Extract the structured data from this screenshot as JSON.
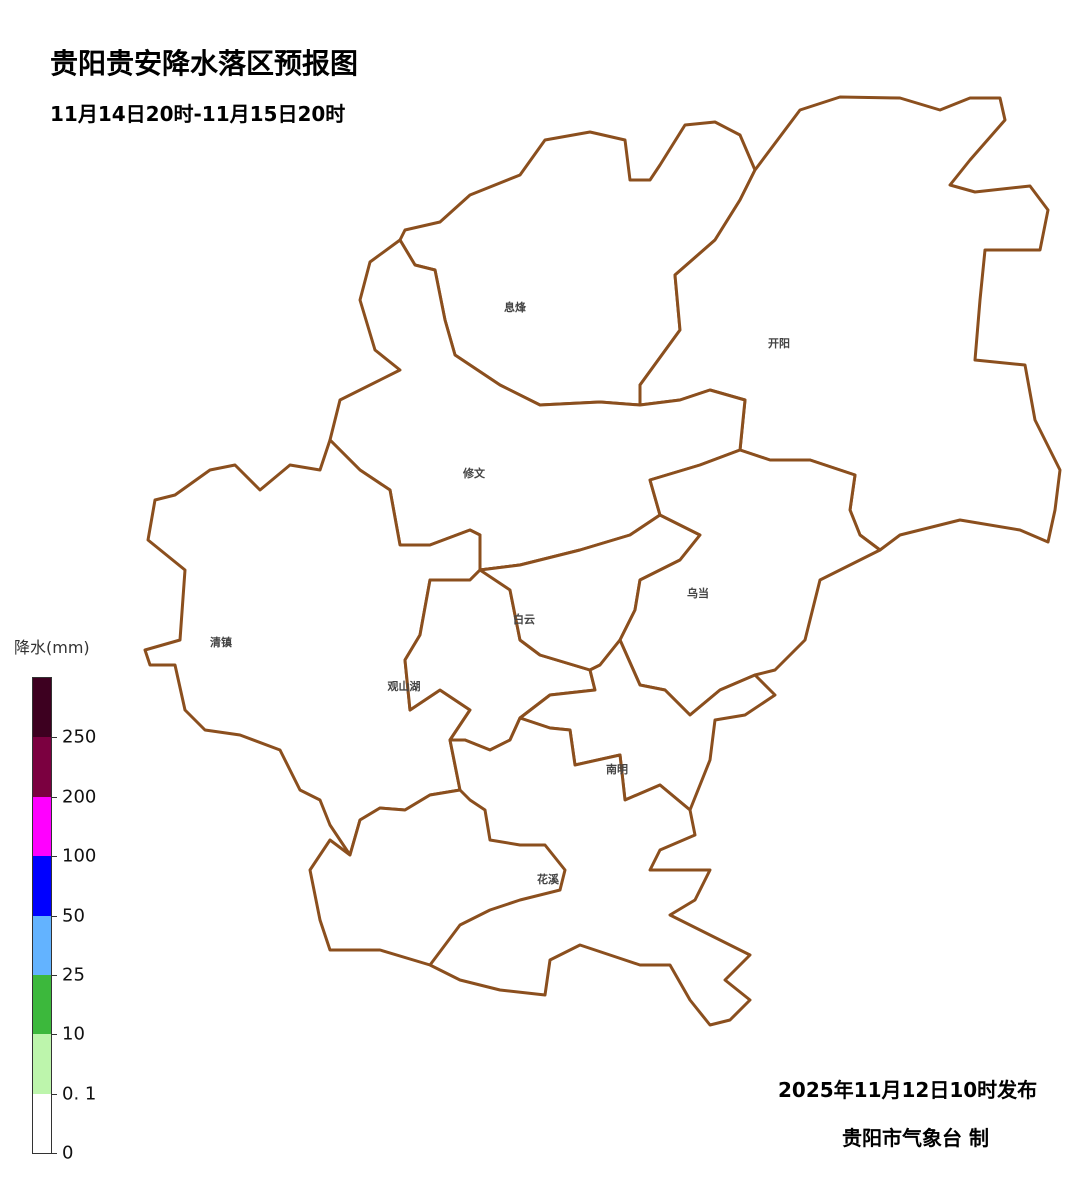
{
  "header": {
    "title": "贵阳贵安降水落区预报图",
    "period": "11月14日20时-11月15日20时"
  },
  "map": {
    "boundary_color": "#8B4F1E",
    "districts": [
      {
        "name": "息烽"
      },
      {
        "name": "开阳"
      },
      {
        "name": "修文"
      },
      {
        "name": "清镇"
      },
      {
        "name": "观山湖"
      },
      {
        "name": "白云"
      },
      {
        "name": "乌当"
      },
      {
        "name": "南明"
      },
      {
        "name": "花溪"
      }
    ]
  },
  "legend": {
    "title": "降水(mm)",
    "bins_top_to_bottom": [
      {
        "color": "#3D0020"
      },
      {
        "color": "#7B0040"
      },
      {
        "color": "#FF00FF"
      },
      {
        "color": "#0000FF"
      },
      {
        "color": "#63B3FF"
      },
      {
        "color": "#3CB83C"
      },
      {
        "color": "#BDF5AC"
      },
      {
        "color": "#FFFFFF"
      }
    ],
    "ticks": [
      "250",
      "200",
      "100",
      "50",
      "25",
      "10",
      "0. 1",
      "0"
    ]
  },
  "footer": {
    "issued": "2025年11月12日10时发布",
    "maker": "贵阳市气象台  制"
  }
}
